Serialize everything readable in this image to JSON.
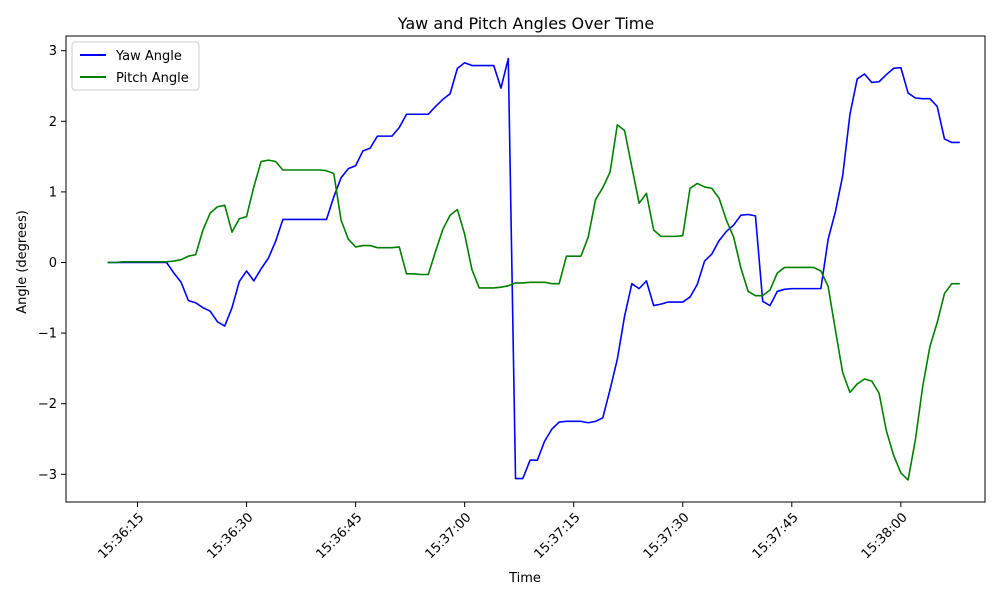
{
  "chart_data": {
    "type": "line",
    "title": "Yaw and Pitch Angles Over Time",
    "xlabel": "Time",
    "ylabel": "Angle (degrees)",
    "x_start": "15:36:11",
    "x_step_seconds": 1,
    "x_ticks": [
      "15:36:15",
      "15:36:30",
      "15:36:45",
      "15:37:00",
      "15:37:15",
      "15:37:30",
      "15:37:45",
      "15:38:00"
    ],
    "y_ticks": [
      "−3",
      "−2",
      "−1",
      "0",
      "1",
      "2",
      "3"
    ],
    "ylim": [
      -3.4,
      3.2
    ],
    "grid": false,
    "legend_position": "upper-left",
    "series": [
      {
        "name": "Yaw Angle",
        "color": "#0000ff",
        "values": [
          0,
          0,
          0,
          0,
          0,
          0,
          0,
          0,
          0,
          -0.15,
          -0.28,
          -0.54,
          -0.57,
          -0.64,
          -0.69,
          -0.84,
          -0.9,
          -0.64,
          -0.27,
          -0.12,
          -0.26,
          -0.09,
          0.06,
          0.3,
          0.61,
          0.61,
          0.61,
          0.61,
          0.61,
          0.61,
          0.61,
          0.93,
          1.2,
          1.33,
          1.37,
          1.58,
          1.62,
          1.79,
          1.79,
          1.79,
          1.91,
          2.1,
          2.1,
          2.1,
          2.1,
          2.21,
          2.31,
          2.39,
          2.75,
          2.83,
          2.79,
          2.79,
          2.79,
          2.79,
          2.47,
          2.89,
          -3.06,
          -3.06,
          -2.8,
          -2.8,
          -2.53,
          -2.36,
          -2.26,
          -2.25,
          -2.25,
          -2.25,
          -2.27,
          -2.25,
          -2.2,
          -1.8,
          -1.37,
          -0.76,
          -0.3,
          -0.37,
          -0.26,
          -0.61,
          -0.59,
          -0.56,
          -0.56,
          -0.56,
          -0.49,
          -0.31,
          0.02,
          0.12,
          0.31,
          0.44,
          0.53,
          0.67,
          0.68,
          0.66,
          -0.55,
          -0.61,
          -0.41,
          -0.38,
          -0.37,
          -0.37,
          -0.37,
          -0.37,
          -0.37,
          0.33,
          0.72,
          1.23,
          2.1,
          2.6,
          2.67,
          2.55,
          2.56,
          2.66,
          2.75,
          2.76,
          2.4,
          2.33,
          2.32,
          2.32,
          2.21,
          1.75,
          1.7,
          1.7
        ]
      },
      {
        "name": "Pitch Angle",
        "color": "#008000",
        "values": [
          0,
          0,
          0.01,
          0.01,
          0.01,
          0.01,
          0.01,
          0.01,
          0.01,
          0.02,
          0.04,
          0.09,
          0.11,
          0.46,
          0.7,
          0.79,
          0.81,
          0.43,
          0.62,
          0.65,
          1.07,
          1.43,
          1.45,
          1.43,
          1.31,
          1.31,
          1.31,
          1.31,
          1.31,
          1.31,
          1.3,
          1.26,
          0.6,
          0.33,
          0.22,
          0.24,
          0.24,
          0.21,
          0.21,
          0.21,
          0.22,
          -0.16,
          -0.16,
          -0.17,
          -0.17,
          0.16,
          0.47,
          0.67,
          0.75,
          0.4,
          -0.1,
          -0.36,
          -0.36,
          -0.36,
          -0.35,
          -0.33,
          -0.29,
          -0.29,
          -0.28,
          -0.28,
          -0.28,
          -0.3,
          -0.3,
          0.09,
          0.09,
          0.09,
          0.36,
          0.89,
          1.06,
          1.28,
          1.95,
          1.87,
          1.35,
          0.84,
          0.98,
          0.46,
          0.37,
          0.37,
          0.37,
          0.38,
          1.05,
          1.12,
          1.07,
          1.05,
          0.91,
          0.6,
          0.36,
          -0.08,
          -0.41,
          -0.47,
          -0.47,
          -0.39,
          -0.15,
          -0.07,
          -0.07,
          -0.07,
          -0.07,
          -0.07,
          -0.12,
          -0.34,
          -0.96,
          -1.56,
          -1.84,
          -1.72,
          -1.65,
          -1.68,
          -1.85,
          -2.38,
          -2.73,
          -2.98,
          -3.08,
          -2.51,
          -1.76,
          -1.19,
          -0.85,
          -0.44,
          -0.3,
          -0.3
        ]
      }
    ]
  }
}
